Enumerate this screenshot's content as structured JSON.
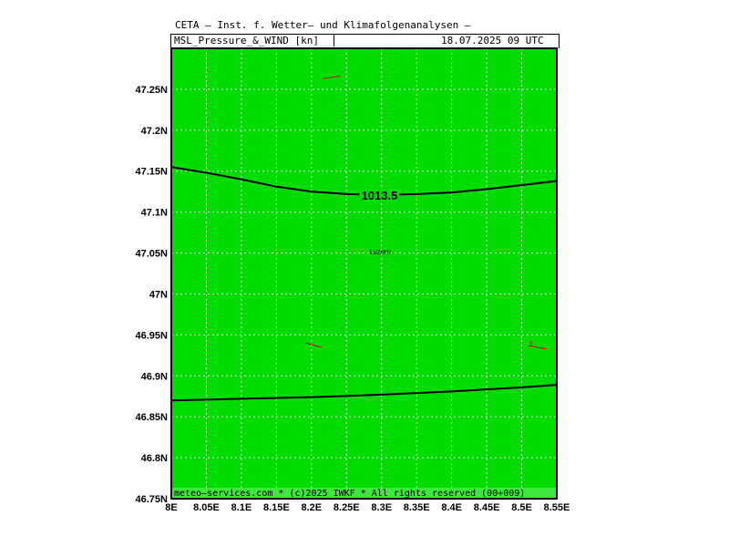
{
  "header": {
    "title": "CETA — Inst. f. Wetter— und Klimafolgenanalysen —",
    "product": "MSL_Pressure_&_WIND [kn]",
    "valid_time": "18.07.2025 09 UTC"
  },
  "map": {
    "background_color": "#00dc00",
    "grid_color": "#d8d8d8",
    "lon_range": [
      8.0,
      8.55
    ],
    "lat_range": [
      46.75,
      47.3
    ],
    "lon_ticks": [
      "8E",
      "8.05E",
      "8.1E",
      "8.15E",
      "8.2E",
      "8.25E",
      "8.3E",
      "8.35E",
      "8.4E",
      "8.45E",
      "8.5E",
      "8.55E"
    ],
    "lat_ticks": [
      "47.25N",
      "47.2N",
      "47.15N",
      "47.1N",
      "47.05N",
      "47N",
      "46.95N",
      "46.9N",
      "46.85N",
      "46.8N",
      "46.75N"
    ],
    "isobars": [
      {
        "label": "1013.5",
        "points": [
          [
            8.0,
            47.155
          ],
          [
            8.05,
            47.148
          ],
          [
            8.1,
            47.14
          ],
          [
            8.15,
            47.131
          ],
          [
            8.2,
            47.125
          ],
          [
            8.25,
            47.122
          ],
          [
            8.3,
            47.121
          ],
          [
            8.35,
            47.122
          ],
          [
            8.4,
            47.124
          ],
          [
            8.45,
            47.128
          ],
          [
            8.5,
            47.133
          ],
          [
            8.55,
            47.138
          ]
        ]
      },
      {
        "label": "",
        "points": [
          [
            8.0,
            46.87
          ],
          [
            8.1,
            46.872
          ],
          [
            8.2,
            46.874
          ],
          [
            8.3,
            46.877
          ],
          [
            8.4,
            46.881
          ],
          [
            8.5,
            46.886
          ],
          [
            8.55,
            46.889
          ]
        ]
      }
    ],
    "wind_barbs": [
      {
        "lon": 8.225,
        "lat": 47.265
      },
      {
        "lon": 8.2,
        "lat": 46.937
      },
      {
        "lon": 8.535,
        "lat": 46.937
      }
    ],
    "cities": [
      {
        "name": "Luzern",
        "lon": 8.3,
        "lat": 47.05
      }
    ],
    "footer": "meteo—services.com * (c)2025 IWKF * All rights reserved (00+009)"
  }
}
